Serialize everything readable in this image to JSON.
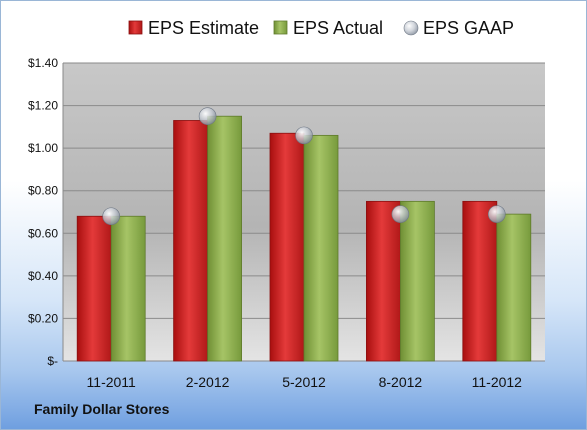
{
  "company": "Family Dollar Stores",
  "chart_data": {
    "type": "bar",
    "categories": [
      "11-2011",
      "2-2012",
      "5-2012",
      "8-2012",
      "11-2012"
    ],
    "series": [
      {
        "name": "EPS Estimate",
        "values": [
          0.68,
          1.13,
          1.07,
          0.75,
          0.75
        ],
        "color": "#d02424"
      },
      {
        "name": "EPS Actual",
        "values": [
          0.68,
          1.15,
          1.06,
          0.75,
          0.69
        ],
        "color": "#8fae4e"
      },
      {
        "name": "EPS GAAP",
        "values": [
          0.68,
          1.15,
          1.06,
          0.69,
          0.69
        ],
        "color": "#c9ced6",
        "marker": "sphere"
      }
    ],
    "ylim": [
      0,
      1.4
    ],
    "yticks": [
      0,
      0.2,
      0.4,
      0.6,
      0.8,
      1.0,
      1.2,
      1.4
    ],
    "ytick_labels": [
      "$-",
      "$0.20",
      "$0.40",
      "$0.60",
      "$0.80",
      "$1.00",
      "$1.20",
      "$1.40"
    ],
    "grid": true,
    "legend": "top"
  }
}
